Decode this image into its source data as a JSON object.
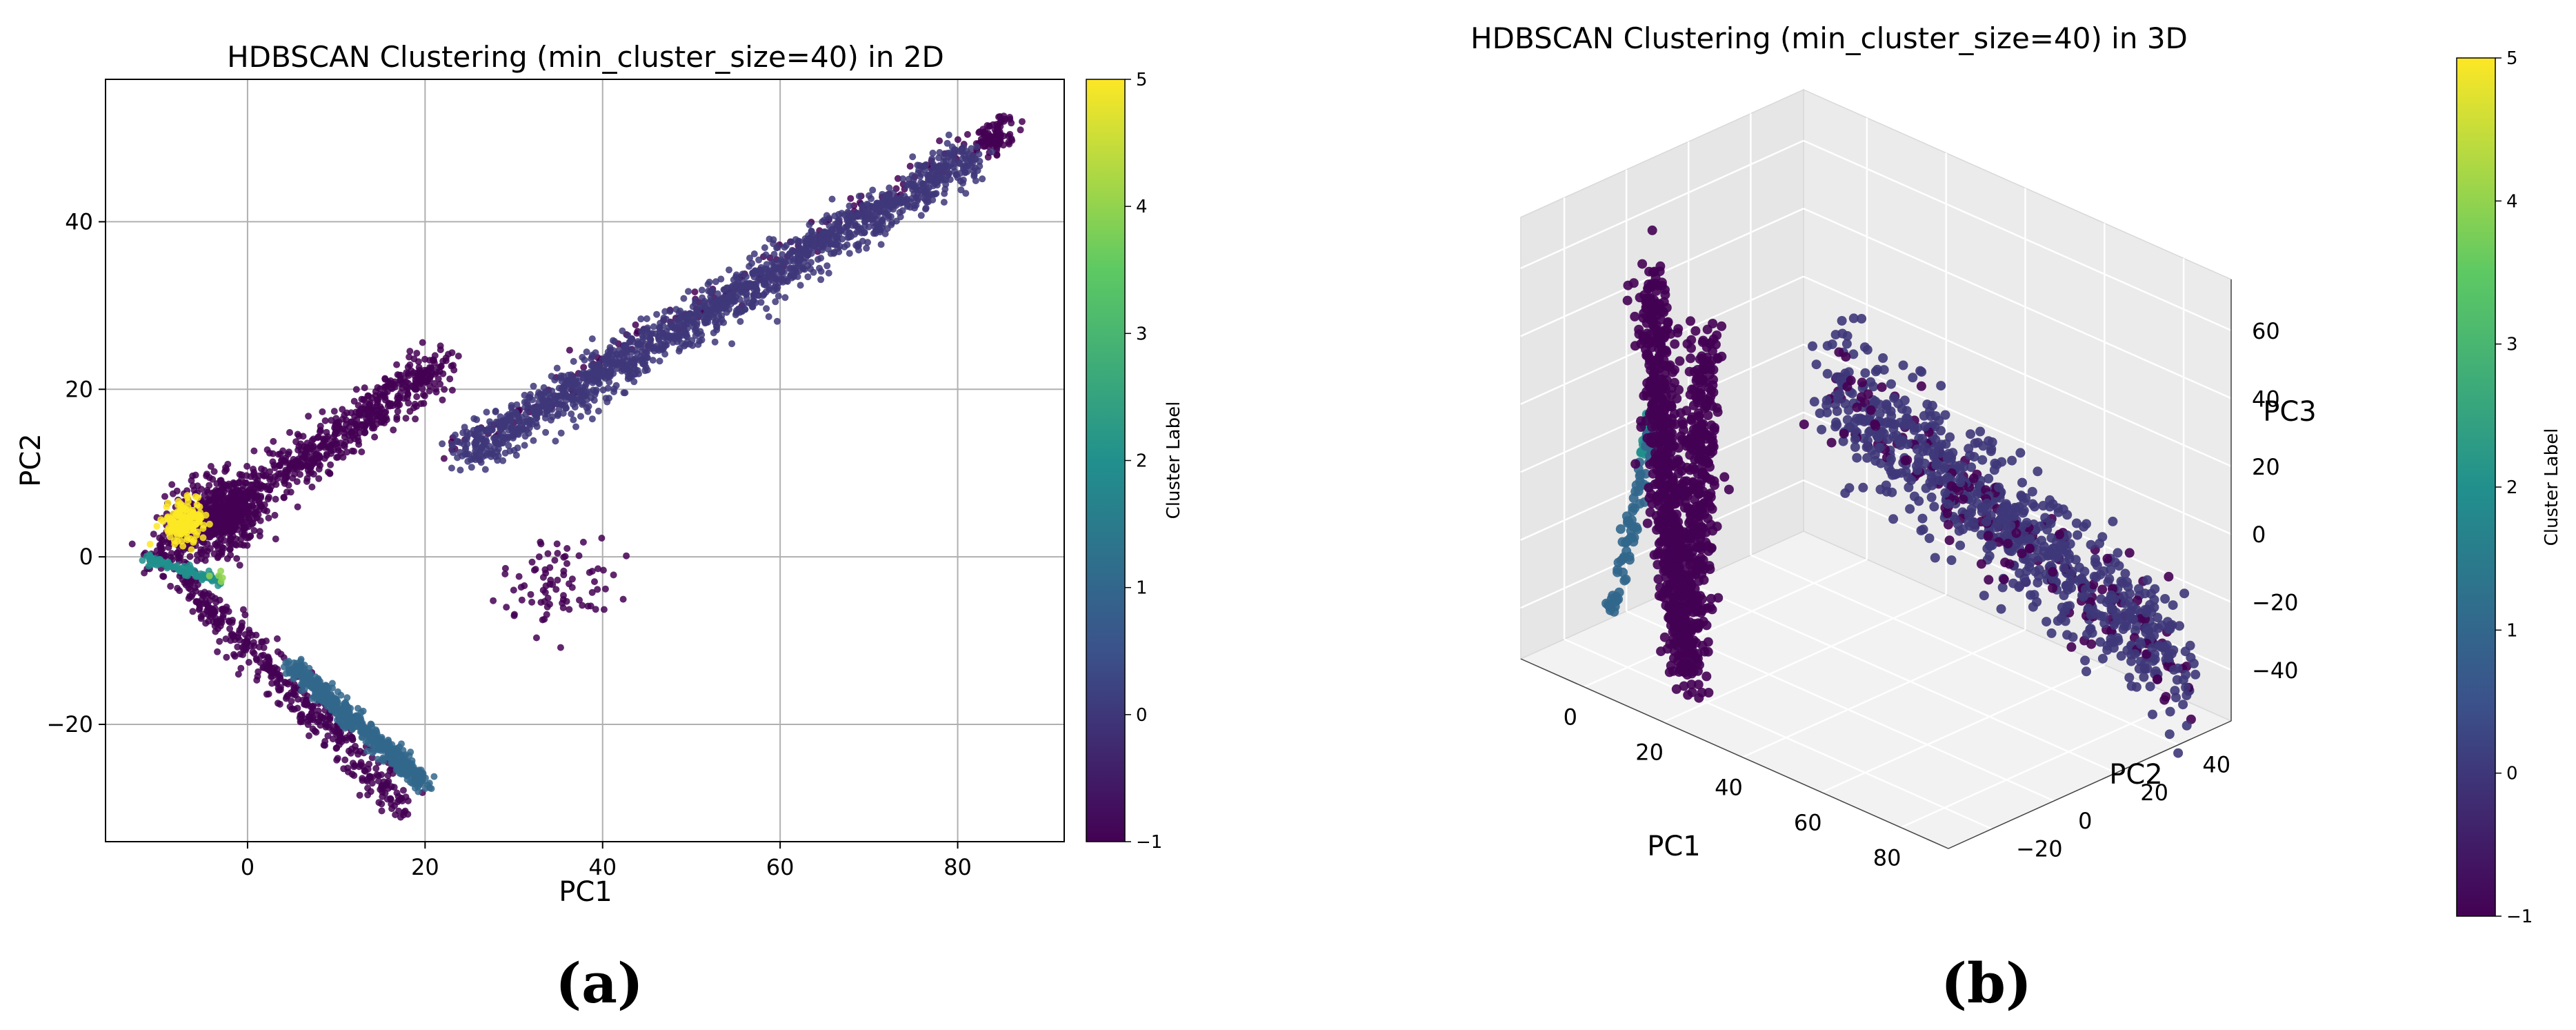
{
  "colormap": {
    "name": "viridis",
    "stops": [
      "#440154",
      "#3b528b",
      "#21908d",
      "#5dc963",
      "#fde725"
    ]
  },
  "chart_data": [
    {
      "type": "scatter",
      "panel_label": "(a)",
      "title": "HDBSCAN Clustering (min_cluster_size=40) in 2D",
      "xlabel": "PC1",
      "ylabel": "PC2",
      "xlim": [
        -16,
        92
      ],
      "ylim": [
        -34,
        57
      ],
      "xticks": [
        0,
        20,
        40,
        60,
        80
      ],
      "yticks": [
        -20,
        0,
        20,
        40
      ],
      "xtick_labels": [
        "0",
        "20",
        "40",
        "60",
        "80"
      ],
      "ytick_labels": [
        "−20",
        "0",
        "20",
        "40"
      ],
      "grid": true,
      "marker_alpha": 0.85,
      "colorbar": {
        "label": "Cluster Label",
        "range": [
          -1,
          5
        ],
        "ticks": [
          -1,
          0,
          1,
          2,
          3,
          4,
          5
        ],
        "tick_labels": [
          "−1",
          "0",
          "1",
          "2",
          "3",
          "4",
          "5"
        ]
      },
      "clusters": [
        {
          "label": -1,
          "name": "noise",
          "approx_points": 2000,
          "regions": [
            {
              "shape": "segment",
              "from": [
                -10,
                0
              ],
              "to": [
                22,
                23
              ],
              "spread": 2.2,
              "share": 0.4
            },
            {
              "shape": "blob",
              "center": [
                -3,
                5
              ],
              "radius": [
                6,
                5
              ],
              "share": 0.2
            },
            {
              "shape": "segment",
              "from": [
                -8,
                -2
              ],
              "to": [
                18,
                -30
              ],
              "spread": 1.8,
              "share": 0.22
            },
            {
              "shape": "blob",
              "center": [
                35,
                -3
              ],
              "radius": [
                7,
                6
              ],
              "share": 0.04
            },
            {
              "shape": "segment",
              "from": [
                22,
                12
              ],
              "to": [
                86,
                52
              ],
              "spread": 1.5,
              "share": 0.1
            },
            {
              "shape": "blob",
              "center": [
                84,
                50
              ],
              "radius": [
                2,
                2
              ],
              "share": 0.04
            }
          ]
        },
        {
          "label": 0,
          "name": "cluster 0",
          "approx_points": 1500,
          "regions": [
            {
              "shape": "segment",
              "from": [
                24,
                12
              ],
              "to": [
                82,
                48
              ],
              "spread": 2.2,
              "share": 1.0
            }
          ]
        },
        {
          "label": 1,
          "name": "cluster 1",
          "approx_points": 600,
          "regions": [
            {
              "shape": "segment",
              "from": [
                5,
                -13
              ],
              "to": [
                20,
                -27
              ],
              "spread": 0.9,
              "share": 1.0
            }
          ]
        },
        {
          "label": 2,
          "name": "cluster 2",
          "approx_points": 90,
          "regions": [
            {
              "shape": "segment",
              "from": [
                -12,
                0
              ],
              "to": [
                -3,
                -3
              ],
              "spread": 0.5,
              "share": 1.0
            }
          ]
        },
        {
          "label": 4,
          "name": "cluster 4",
          "approx_points": 5,
          "regions": [
            {
              "shape": "blob",
              "center": [
                -3,
                -2
              ],
              "radius": [
                1.5,
                1.2
              ],
              "share": 1.0
            }
          ]
        },
        {
          "label": 5,
          "name": "cluster 5",
          "approx_points": 150,
          "regions": [
            {
              "shape": "blob",
              "center": [
                -7,
                4
              ],
              "radius": [
                2.5,
                2.5
              ],
              "share": 1.0
            }
          ]
        }
      ]
    },
    {
      "type": "scatter3d",
      "panel_label": "(b)",
      "title": "HDBSCAN Clustering (min_cluster_size=40) in 3D",
      "xlabel": "PC1",
      "ylabel": "PC2",
      "zlabel": "PC3",
      "xlim": [
        -16,
        92
      ],
      "ylim": [
        -34,
        57
      ],
      "zlim": [
        -55,
        75
      ],
      "xticks": [
        0,
        20,
        40,
        60,
        80
      ],
      "yticks": [
        -20,
        0,
        20,
        40
      ],
      "zticks": [
        -40,
        -20,
        0,
        20,
        40,
        60
      ],
      "xtick_labels": [
        "0",
        "20",
        "40",
        "60",
        "80"
      ],
      "ytick_labels": [
        "−20",
        "0",
        "20",
        "40"
      ],
      "ztick_labels": [
        "−40",
        "−20",
        "0",
        "20",
        "40",
        "60"
      ],
      "grid": true,
      "colorbar": {
        "label": "Cluster Label",
        "range": [
          -1,
          5
        ],
        "ticks": [
          -1,
          0,
          1,
          2,
          3,
          4,
          5
        ],
        "tick_labels": [
          "−1",
          "0",
          "1",
          "2",
          "3",
          "4",
          "5"
        ]
      },
      "clusters": [
        {
          "label": -1,
          "name": "noise",
          "approx_points": 1200,
          "regions": [
            {
              "shape": "segment",
              "from": [
                -10,
                0,
                45
              ],
              "to": [
                18,
                -25,
                -45
              ],
              "spread": [
                3,
                3,
                10
              ],
              "share": 0.55
            },
            {
              "shape": "segment",
              "from": [
                0,
                5,
                30
              ],
              "to": [
                20,
                -25,
                -45
              ],
              "spread": [
                3,
                3,
                10
              ],
              "share": 0.3
            },
            {
              "shape": "segment",
              "from": [
                25,
                12,
                30
              ],
              "to": [
                85,
                50,
                -40
              ],
              "spread": [
                4,
                4,
                12
              ],
              "share": 0.15
            }
          ]
        },
        {
          "label": 0,
          "name": "cluster 0",
          "approx_points": 750,
          "regions": [
            {
              "shape": "segment",
              "from": [
                25,
                12,
                30
              ],
              "to": [
                85,
                50,
                -40
              ],
              "spread": [
                4,
                4,
                16
              ],
              "share": 1.0
            }
          ]
        },
        {
          "label": 1,
          "name": "cluster 1",
          "approx_points": 80,
          "regions": [
            {
              "shape": "segment",
              "from": [
                -8,
                0,
                10
              ],
              "to": [
                -8,
                -15,
                -45
              ],
              "spread": [
                1,
                1,
                3
              ],
              "share": 1.0
            }
          ]
        },
        {
          "label": 2,
          "name": "cluster 2",
          "approx_points": 20,
          "regions": [
            {
              "shape": "segment",
              "from": [
                -10,
                0,
                5
              ],
              "to": [
                -10,
                -3,
                -5
              ],
              "spread": [
                0.6,
                0.6,
                1.5
              ],
              "share": 1.0
            }
          ]
        }
      ]
    }
  ]
}
